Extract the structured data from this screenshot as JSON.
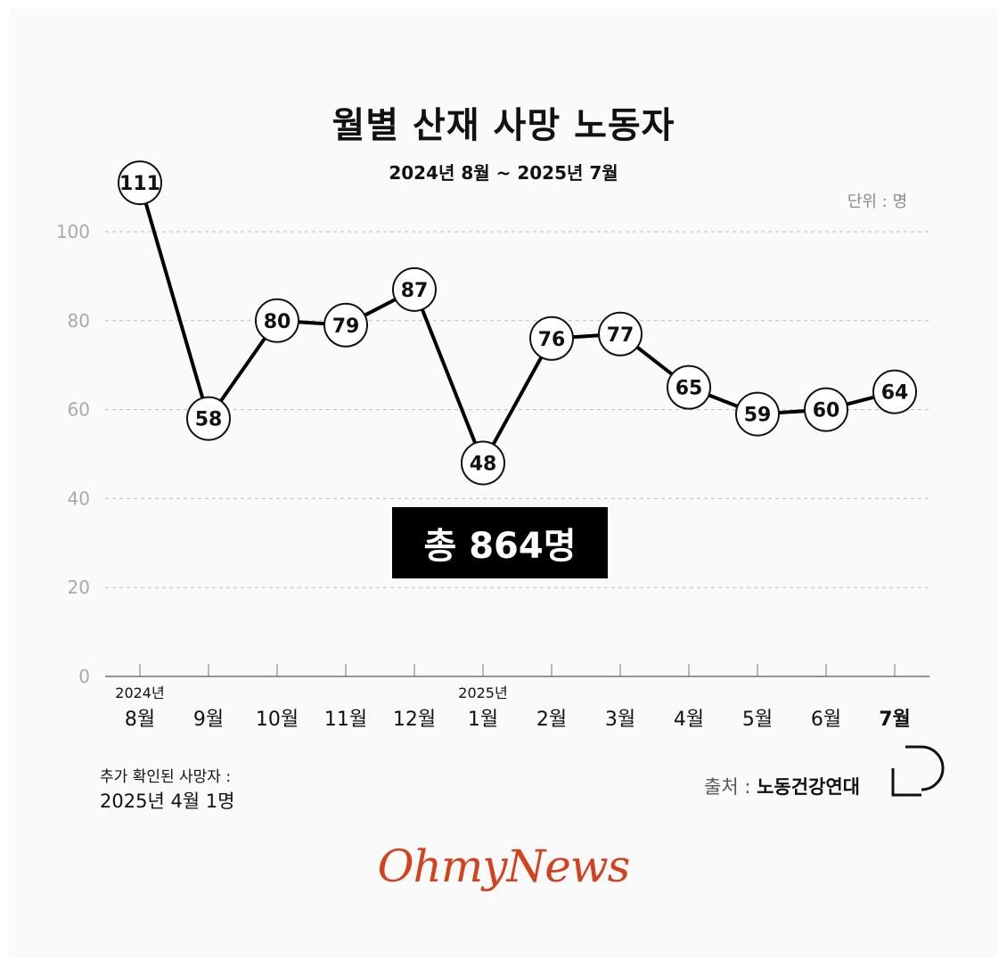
{
  "header": {
    "title": "월별 산재 사망 노동자",
    "subtitle": "2024년 8월 ~ 2025년 7월",
    "unit": "단위 : 명"
  },
  "total": {
    "label": "총 864명"
  },
  "chart_data": {
    "type": "line",
    "title": "월별 산재 사망 노동자",
    "subtitle": "2024년 8월 ~ 2025년 7월",
    "unit": "단위 : 명",
    "categories": [
      "8월",
      "9월",
      "10월",
      "11월",
      "12월",
      "1월",
      "2월",
      "3월",
      "4월",
      "5월",
      "6월",
      "7월"
    ],
    "year_markers": [
      {
        "index": 0,
        "label": "2024년"
      },
      {
        "index": 5,
        "label": "2025년"
      }
    ],
    "values": [
      111,
      58,
      80,
      79,
      87,
      48,
      76,
      77,
      65,
      59,
      60,
      64
    ],
    "ylim": [
      0,
      100
    ],
    "yticks": [
      0,
      20,
      40,
      60,
      80,
      100
    ],
    "grid": true,
    "highlight_last_category": true,
    "colors": {
      "line": "#000000",
      "marker_fill": "#ffffff",
      "grid": "#bdbdbd",
      "tick": "#aaaaaa"
    }
  },
  "footnote": {
    "label": "추가 확인된 사망자 :",
    "value": "2025년 4월 1명"
  },
  "source": {
    "label": "출처 : ",
    "value": "노동건강연대"
  },
  "brand": {
    "name": "OhmyNews",
    "color": "#d2421e"
  }
}
